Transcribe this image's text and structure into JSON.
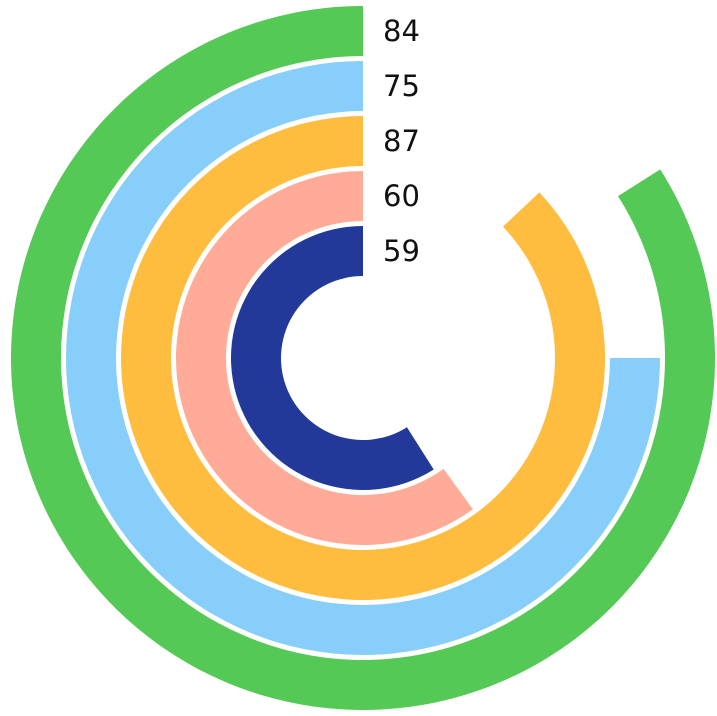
{
  "chart_data": {
    "type": "radialBar",
    "values": [
      84,
      75,
      87,
      60,
      59
    ],
    "colors": [
      "#55c955",
      "#87cefa",
      "#ffbd3f",
      "#ffab98",
      "#22399a"
    ],
    "ylim": [
      0,
      100
    ]
  }
}
